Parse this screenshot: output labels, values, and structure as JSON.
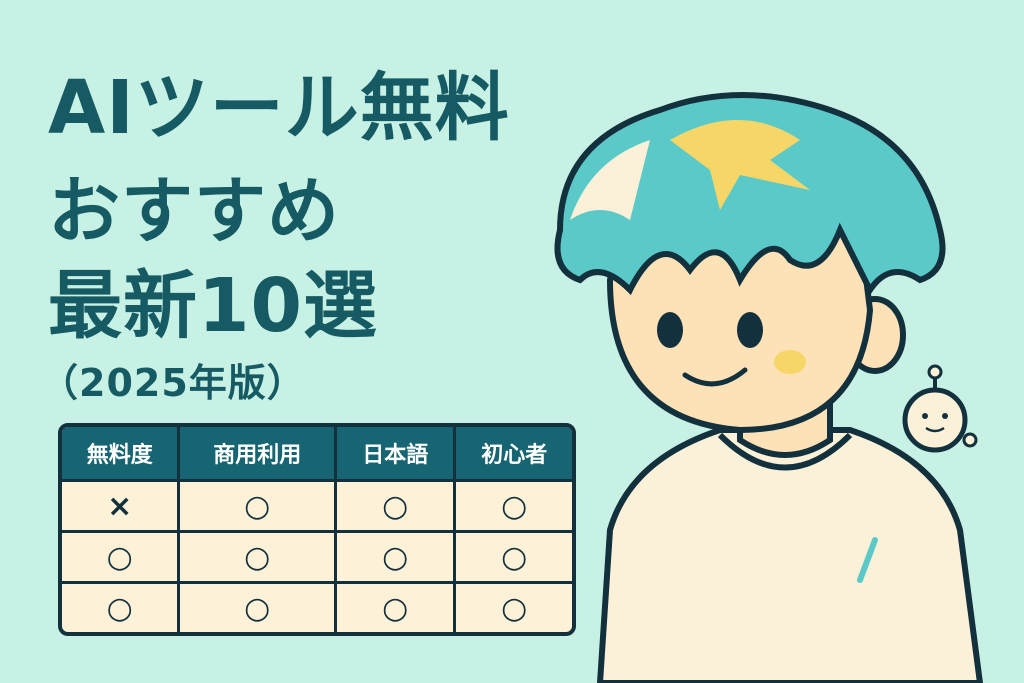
{
  "title": {
    "line1": "AIツール無料",
    "line2": "おすすめ",
    "line3": "最新10選",
    "line4": "（2025年版）"
  },
  "table": {
    "headers": [
      "無料度",
      "商用利用",
      "日本語",
      "初心者"
    ],
    "rows": [
      [
        "×",
        "○",
        "○",
        "○"
      ],
      [
        "○",
        "○",
        "○",
        "○"
      ],
      [
        "○",
        "○",
        "○",
        "○"
      ]
    ]
  },
  "colors": {
    "background": "#c8f1e5",
    "title": "#165a63",
    "table_header": "#176472",
    "table_body": "#fdf1d8",
    "hair": "#5cc9c9",
    "hair_highlight": "#f7d668"
  },
  "illustration": {
    "subject": "boy-with-teal-hair-icon",
    "companion": "small-robot-icon"
  }
}
